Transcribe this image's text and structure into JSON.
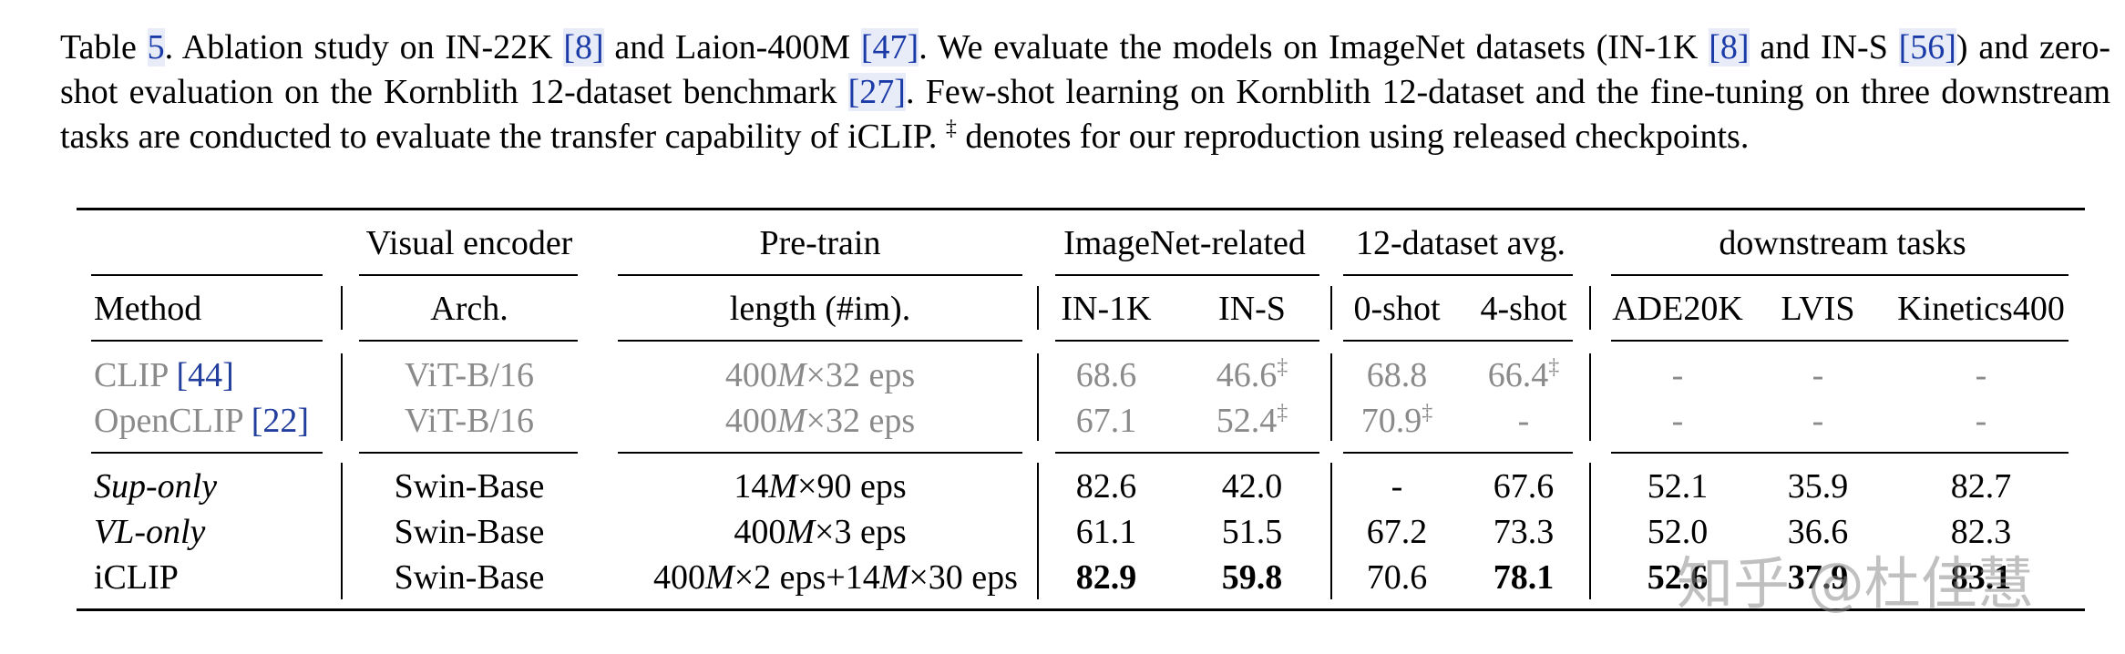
{
  "caption": {
    "p1": "Table ",
    "table_num": "5",
    "p2": ". Ablation study on IN-22K ",
    "cite1": "[8]",
    "p3": " and Laion-400M ",
    "cite2": "[47]",
    "p4": ". We evaluate the models on ImageNet datasets (IN-1K ",
    "cite3": "[8]",
    "p5": " and IN-S ",
    "cite4": "[56]",
    "p6": ") and zero-shot evaluation on the Kornblith 12-dataset benchmark ",
    "cite5": "[27]",
    "p7": ". Few-shot learning on Kornblith 12-dataset and the fine-tuning on three downstream tasks are conducted to evaluate the transfer capability of iCLIP. ",
    "dagger": "‡",
    "p8": " denotes for our reproduction using released checkpoints."
  },
  "header": {
    "group": {
      "visual_encoder": "Visual encoder",
      "pretrain": "Pre-train",
      "imagenet": "ImageNet-related",
      "dataset12": "12-dataset avg.",
      "downstream": "downstream tasks"
    },
    "cols": {
      "method": "Method",
      "arch": "Arch.",
      "length": "length (#im).",
      "in1k": "IN-1K",
      "ins": "IN-S",
      "zeroshot": "0-shot",
      "fourshot": "4-shot",
      "ade": "ADE20K",
      "lvis": "LVIS",
      "kinetics": "Kinetics400"
    }
  },
  "rows": [
    {
      "method": "CLIP ",
      "method_cite": "[44]",
      "arch": "ViT-B/16",
      "len_a": "400",
      "len_b": "M",
      "len_c": "×32 eps",
      "in1k": "68.6",
      "ins": "46.6",
      "ins_sup": "‡",
      "zeroshot": "68.8",
      "zeroshot_sup": "",
      "fourshot": "66.4",
      "fourshot_sup": "‡",
      "ade": "-",
      "lvis": "-",
      "kinetics": "-"
    },
    {
      "method": "OpenCLIP ",
      "method_cite": "[22]",
      "arch": "ViT-B/16",
      "len_a": "400",
      "len_b": "M",
      "len_c": "×32 eps",
      "in1k": "67.1",
      "ins": "52.4",
      "ins_sup": "‡",
      "zeroshot": "70.9",
      "zeroshot_sup": "‡",
      "fourshot": "-",
      "fourshot_sup": "",
      "ade": "-",
      "lvis": "-",
      "kinetics": "-"
    },
    {
      "method": "Sup-only",
      "arch": "Swin-Base",
      "len_a": "14",
      "len_b": "M",
      "len_c": "×90 eps",
      "in1k": "82.6",
      "ins": "42.0",
      "zeroshot": "-",
      "fourshot": "67.6",
      "ade": "52.1",
      "lvis": "35.9",
      "kinetics": "82.7"
    },
    {
      "method": "VL-only",
      "arch": "Swin-Base",
      "len_a": "400",
      "len_b": "M",
      "len_c": "×3 eps",
      "in1k": "61.1",
      "ins": "51.5",
      "zeroshot": "67.2",
      "fourshot": "73.3",
      "ade": "52.0",
      "lvis": "36.6",
      "kinetics": "82.3"
    },
    {
      "method": "iCLIP",
      "arch": "Swin-Base",
      "len_a": "400",
      "len_b": "M",
      "len_c": "×2 eps+14",
      "len_d": "M",
      "len_e": "×30 eps",
      "in1k": "82.9",
      "ins": "59.8",
      "zeroshot": "70.6",
      "fourshot": "78.1",
      "ade": "52.6",
      "lvis": "37.9",
      "kinetics": "83.1"
    }
  ],
  "watermark": "知乎 @杜佳慧"
}
